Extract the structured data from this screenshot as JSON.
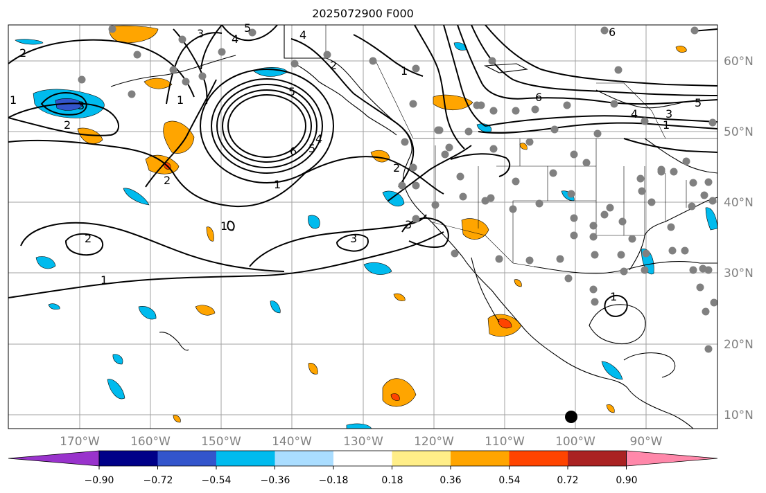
{
  "title": "2025072900 F000",
  "lat_labels": [
    "60°N",
    "50°N",
    "40°N",
    "30°N",
    "20°N",
    "10°N"
  ],
  "lon_labels": [
    "170°W",
    "160°W",
    "150°W",
    "140°W",
    "130°W",
    "120°W",
    "110°W",
    "100°W",
    "90°W"
  ],
  "colorbar": {
    "tick_labels": [
      "−0.90",
      "−0.72",
      "−0.54",
      "−0.36",
      "−0.18",
      "0.18",
      "0.36",
      "0.54",
      "0.72",
      "0.90"
    ],
    "colors": [
      "#9933cc",
      "#000088",
      "#3355cc",
      "#00bbee",
      "#aaddff",
      "#ffffff",
      "#ffee88",
      "#ffa500",
      "#ff4400",
      "#aa2222",
      "#ff88aa"
    ]
  },
  "contour_labels": [
    "1",
    "2",
    "3",
    "4",
    "5",
    "6"
  ],
  "colors": {
    "positive_fill": "#ffa500",
    "negative_fill": "#00bbee",
    "contour": "#000000",
    "station": "#808080",
    "grid": "#a0a0a0"
  }
}
